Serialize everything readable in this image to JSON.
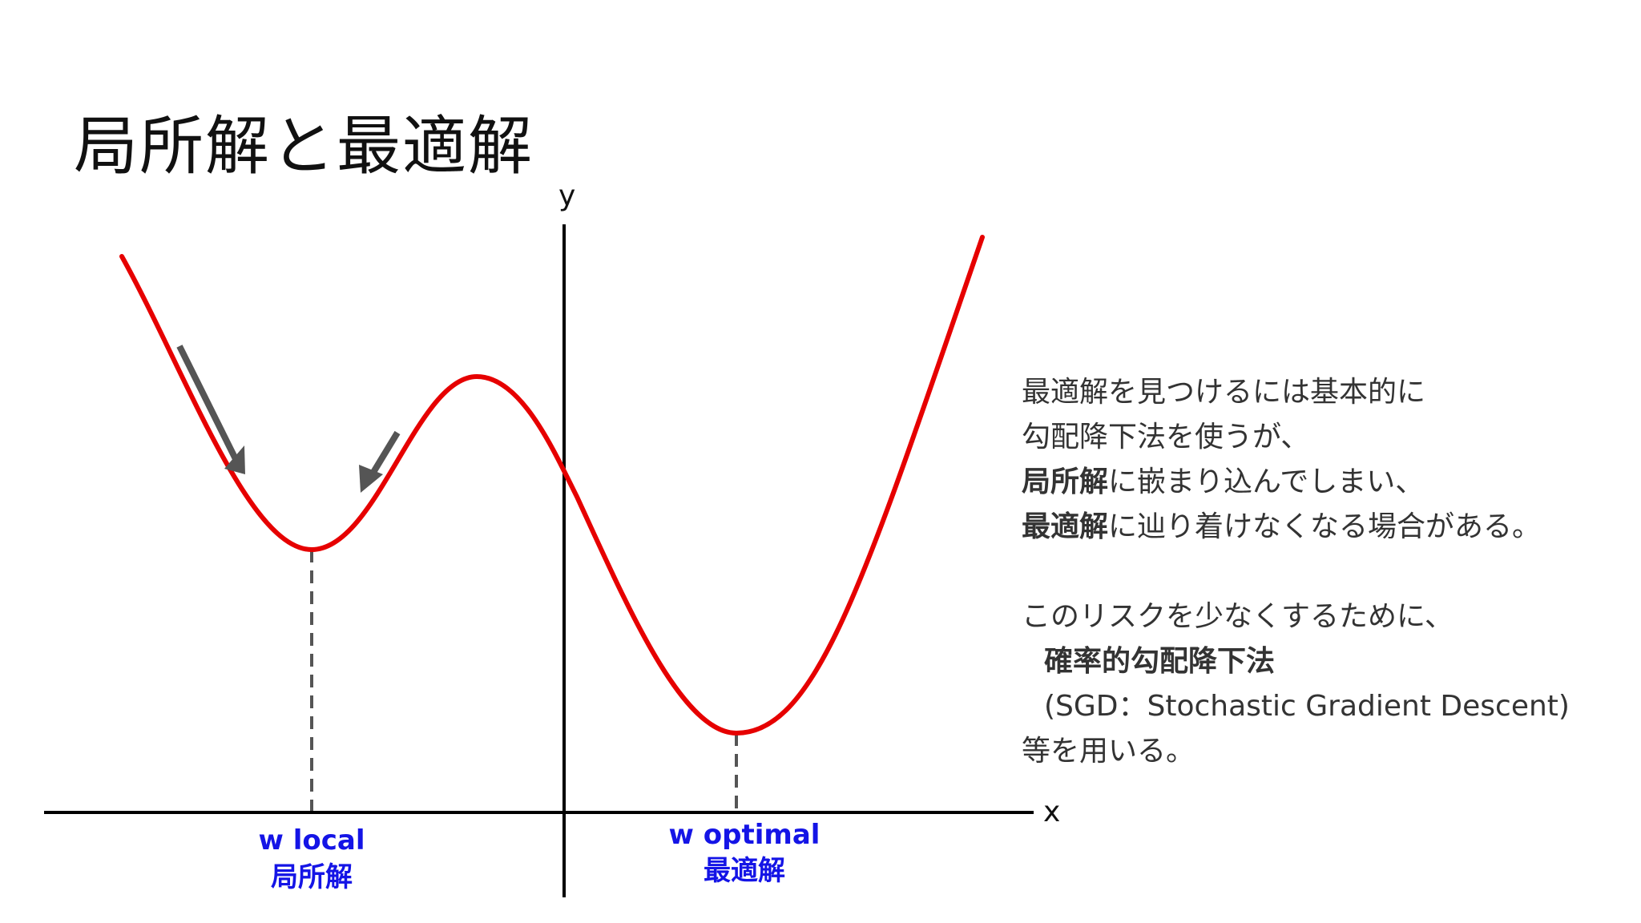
{
  "slide": {
    "title": "局所解と最適解"
  },
  "diagram": {
    "x_axis_label": "x",
    "y_axis_label": "y",
    "local_min": {
      "label_en": "w local",
      "label_ja": "局所解"
    },
    "global_min": {
      "label_en": "w optimal",
      "label_ja": "最適解"
    },
    "colors": {
      "curve": "#e60000",
      "axis": "#000000",
      "arrow": "#555555",
      "guide": "#555555",
      "min_label": "#1414e6"
    }
  },
  "notes": {
    "line1": "最適解を見つけるには基本的に",
    "line2": "勾配降下法を使うが、",
    "line3_bold": "局所解",
    "line3_rest": "に嵌まり込んでしまい、",
    "line4_bold": "最適解",
    "line4_rest": "に辿り着けなくなる場合がある。",
    "line5": "このリスクを少なくするために、",
    "line6_bold": "確率的勾配降下法",
    "line7": "(SGD：Stochastic Gradient Descent)",
    "line8": "等を用いる。"
  }
}
